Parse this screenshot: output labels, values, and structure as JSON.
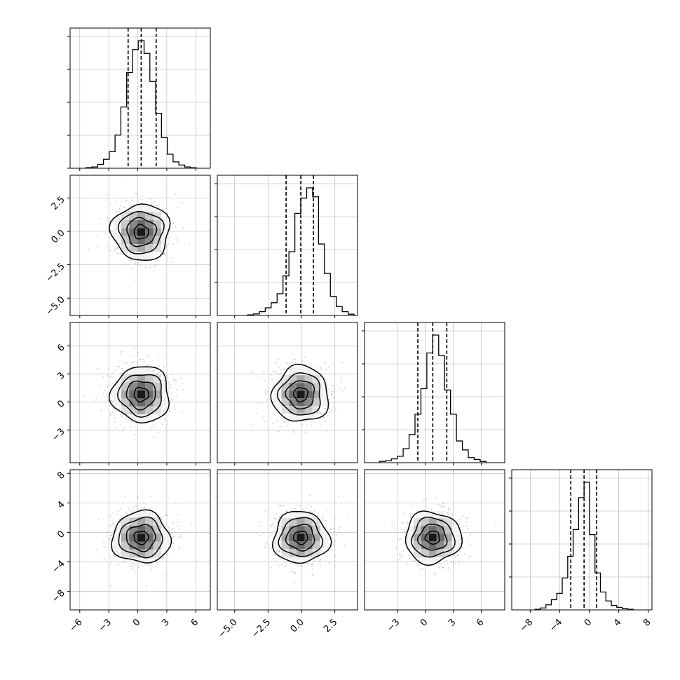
{
  "chart_data": {
    "type": "corner",
    "grid": true,
    "colors": {
      "line": "#000000",
      "grid": "#b0b0b0",
      "points": "#8c8c8c",
      "density": "#000000"
    },
    "variables": [
      {
        "xlim": [
          -7,
          7.5
        ],
        "ticks": [
          -6,
          -3,
          0,
          3,
          6
        ],
        "tick_labels": [
          "−6",
          "−3",
          "0",
          "3",
          "6"
        ],
        "quantiles": [
          -1.0,
          0.35,
          1.9
        ],
        "center": 0.35,
        "sigma": 1.5
      },
      {
        "xlim": [
          -6.3,
          4.2
        ],
        "ticks": [
          -5.0,
          -2.5,
          0.0,
          2.5
        ],
        "tick_labels": [
          "−5.0",
          "−2.5",
          "0.0",
          "2.5"
        ],
        "quantiles": [
          -1.15,
          -0.05,
          0.9
        ],
        "center": -0.05,
        "sigma": 1.05
      },
      {
        "xlim": [
          -6.5,
          8.5
        ],
        "ticks": [
          -3,
          0,
          3,
          6
        ],
        "tick_labels": [
          "−3",
          "0",
          "3",
          "6"
        ],
        "quantiles": [
          -0.8,
          0.8,
          2.3
        ],
        "center": 0.8,
        "sigma": 1.5
      },
      {
        "xlim": [
          -10.5,
          8.5
        ],
        "ticks": [
          -8,
          -4,
          0,
          4,
          8
        ],
        "tick_labels": [
          "−8",
          "−4",
          "0",
          "4",
          "8"
        ],
        "quantiles": [
          -2.5,
          -0.7,
          1.0
        ],
        "center": -0.7,
        "sigma": 1.75
      }
    ],
    "y_tick_labels": {
      "1": [
        "2.5",
        "0.0",
        "−2.5",
        "−5.0"
      ],
      "2": [
        "6",
        "3",
        "0",
        "−3"
      ],
      "3": [
        "8",
        "4",
        "0",
        "−4",
        "−8"
      ]
    },
    "histograms": [
      [
        0.005,
        0.01,
        0.03,
        0.07,
        0.13,
        0.26,
        0.48,
        0.75,
        0.93,
        1.0,
        0.9,
        0.68,
        0.43,
        0.24,
        0.11,
        0.05,
        0.025,
        0.01,
        0.004
      ],
      [
        0.005,
        0.012,
        0.03,
        0.06,
        0.1,
        0.17,
        0.31,
        0.5,
        0.8,
        0.92,
        1.0,
        0.93,
        0.56,
        0.33,
        0.15,
        0.07,
        0.03,
        0.01
      ],
      [
        0.01,
        0.015,
        0.03,
        0.05,
        0.11,
        0.22,
        0.38,
        0.58,
        0.86,
        1.0,
        0.84,
        0.57,
        0.38,
        0.17,
        0.1,
        0.04,
        0.025,
        0.01
      ],
      [
        0.005,
        0.015,
        0.04,
        0.08,
        0.13,
        0.25,
        0.42,
        0.63,
        0.88,
        1.0,
        0.59,
        0.29,
        0.14,
        0.07,
        0.035,
        0.02,
        0.01,
        0.005
      ]
    ]
  }
}
